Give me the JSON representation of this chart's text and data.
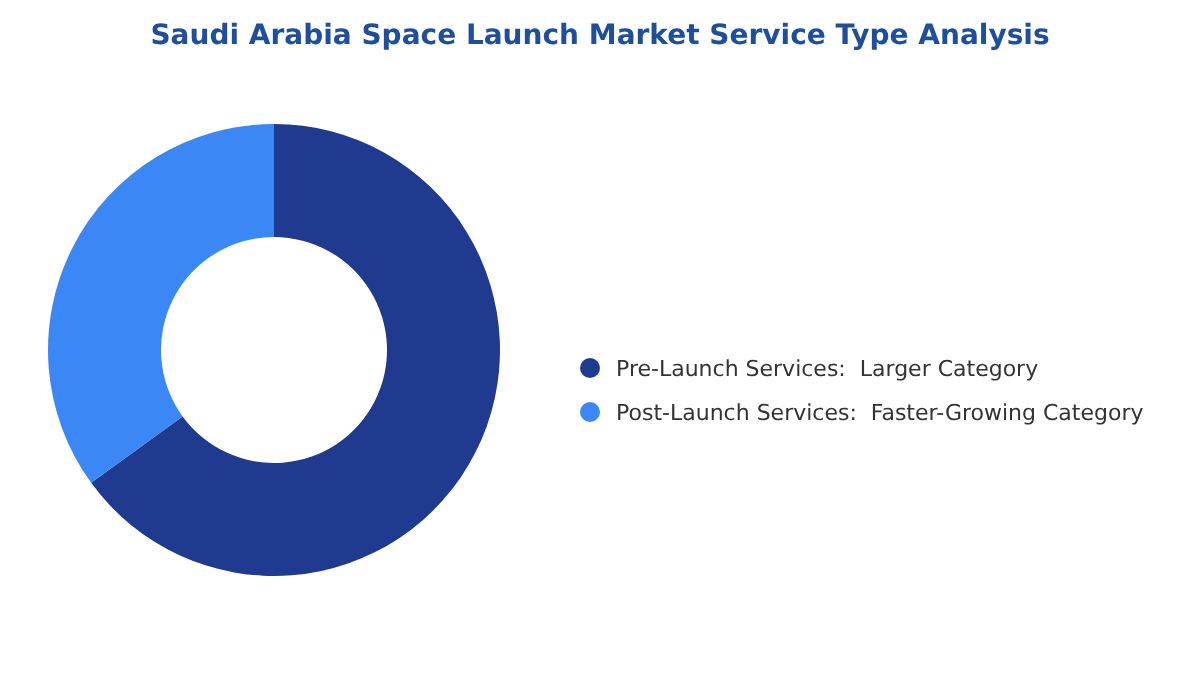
{
  "chart_data": {
    "type": "donut",
    "title": "Saudi Arabia Space Launch Market Service Type Analysis",
    "categories": [
      "Pre-Launch Services:  Larger Category",
      "Post-Launch Services:  Faster-Growing Category"
    ],
    "values": [
      65,
      35
    ],
    "colors": [
      "#1f3a8f",
      "#3b87f5"
    ],
    "legend": "right"
  }
}
